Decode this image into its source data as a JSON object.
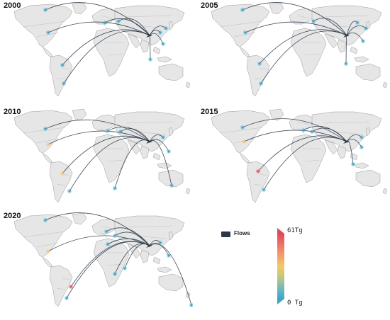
{
  "panels": [
    {
      "year": "2000"
    },
    {
      "year": "2005"
    },
    {
      "year": "2010"
    },
    {
      "year": "2015"
    },
    {
      "year": "2020"
    }
  ],
  "legend": {
    "flows_label": "Flows",
    "scale_max": "61Tg",
    "scale_min": "0 Tg"
  },
  "colors": {
    "land": "#e6e6e6",
    "border": "#9a9a9a",
    "flow": "#2a3748",
    "low": "#3aa6c8",
    "mid": "#f3c86a",
    "high": "#e04a5a"
  }
}
